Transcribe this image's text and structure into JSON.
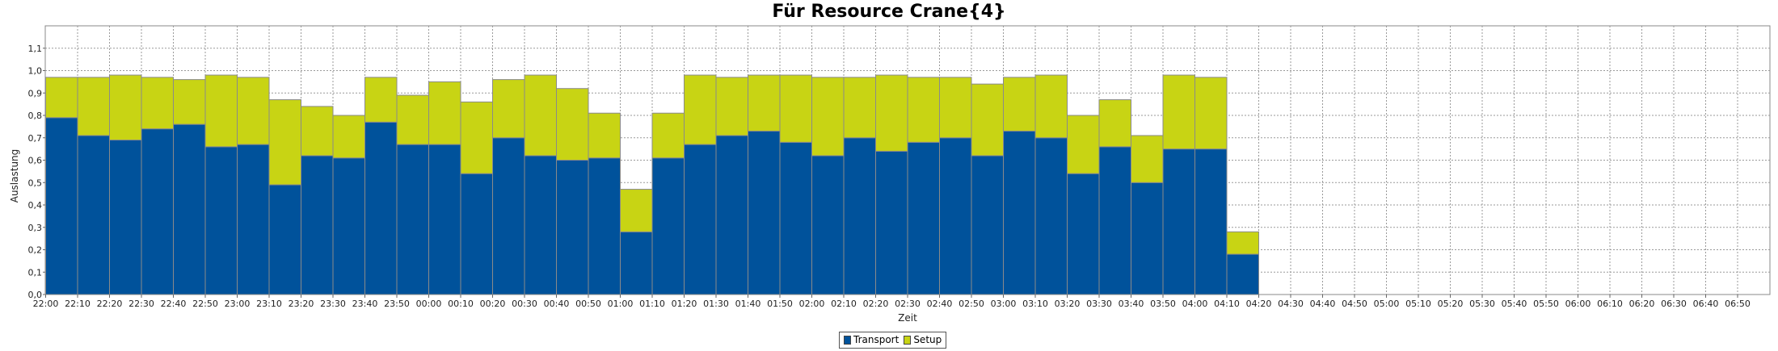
{
  "chart_data": {
    "type": "bar",
    "stacked": true,
    "title": "Für Resource Crane{4}",
    "xlabel": "Zeit",
    "ylabel": "Auslastung",
    "ylim": [
      0,
      1.2
    ],
    "yticks": [
      "0,0",
      "0,1",
      "0,2",
      "0,3",
      "0,4",
      "0,5",
      "0,6",
      "0,7",
      "0,8",
      "0,9",
      "1,0",
      "1,1"
    ],
    "xticks": [
      "22:00",
      "22:10",
      "22:20",
      "22:30",
      "22:40",
      "22:50",
      "23:00",
      "23:10",
      "23:20",
      "23:30",
      "23:40",
      "23:50",
      "00:00",
      "00:10",
      "00:20",
      "00:30",
      "00:40",
      "00:50",
      "01:00",
      "01:10",
      "01:20",
      "01:30",
      "01:40",
      "01:50",
      "02:00",
      "02:10",
      "02:20",
      "02:30",
      "02:40",
      "02:50",
      "03:00",
      "03:10",
      "03:20",
      "03:30",
      "03:40",
      "03:50",
      "04:00",
      "04:10",
      "04:20",
      "04:30",
      "04:40",
      "04:50",
      "05:00",
      "05:10",
      "05:20",
      "05:30",
      "05:40",
      "05:50",
      "06:00",
      "06:10",
      "06:20",
      "06:30",
      "06:40",
      "06:50"
    ],
    "grid": true,
    "legend_position": "bottom-center",
    "series": [
      {
        "name": "Transport",
        "color": "#00529b",
        "values": [
          0.79,
          0.71,
          0.69,
          0.74,
          0.76,
          0.66,
          0.67,
          0.49,
          0.62,
          0.61,
          0.77,
          0.67,
          0.67,
          0.54,
          0.7,
          0.62,
          0.6,
          0.61,
          0.28,
          0.61,
          0.67,
          0.71,
          0.73,
          0.68,
          0.62,
          0.7,
          0.64,
          0.68,
          0.7,
          0.62,
          0.73,
          0.7,
          0.54,
          0.66,
          0.5,
          0.65,
          0.65,
          0.18,
          0,
          0,
          0,
          0,
          0,
          0,
          0,
          0,
          0,
          0,
          0,
          0,
          0,
          0,
          0,
          0
        ]
      },
      {
        "name": "Setup",
        "color": "#c8d414",
        "values": [
          0.18,
          0.26,
          0.29,
          0.23,
          0.2,
          0.32,
          0.3,
          0.38,
          0.22,
          0.19,
          0.2,
          0.22,
          0.28,
          0.32,
          0.26,
          0.36,
          0.32,
          0.2,
          0.19,
          0.2,
          0.31,
          0.26,
          0.25,
          0.3,
          0.35,
          0.27,
          0.34,
          0.29,
          0.27,
          0.32,
          0.24,
          0.28,
          0.26,
          0.21,
          0.21,
          0.33,
          0.32,
          0.1,
          0,
          0,
          0,
          0,
          0,
          0,
          0,
          0,
          0,
          0,
          0,
          0,
          0,
          0,
          0,
          0
        ]
      }
    ]
  }
}
